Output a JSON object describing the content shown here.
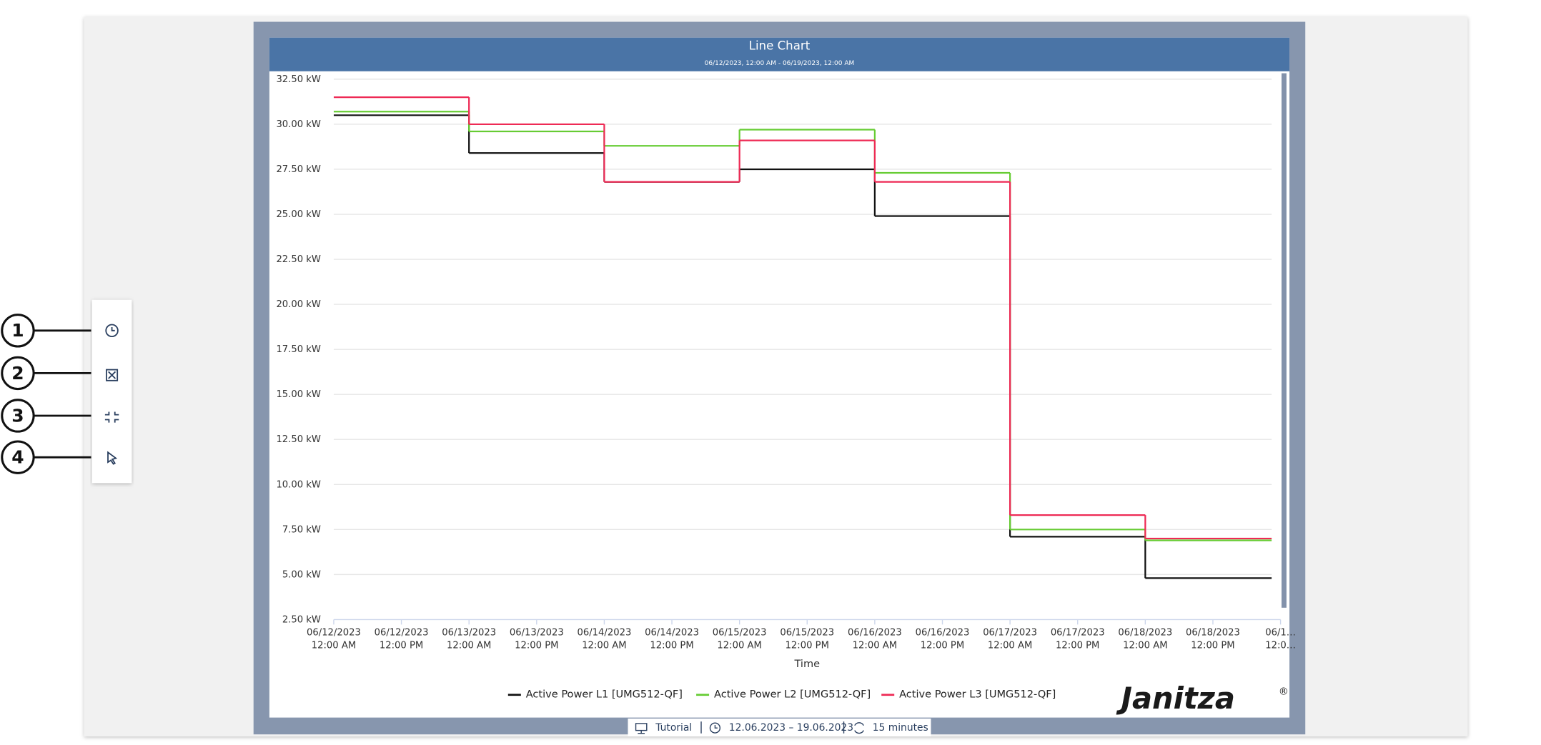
{
  "chart_data": {
    "type": "step-line",
    "title": "Line Chart",
    "subtitle": "06/12/2023, 12:00 AM - 06/19/2023, 12:00 AM",
    "x_label": "Time",
    "x": [
      "06/12/2023 12:00 AM",
      "06/13/2023 12:00 AM",
      "06/14/2023 12:00 AM",
      "06/15/2023 12:00 AM",
      "06/16/2023 12:00 AM",
      "06/17/2023 12:00 AM",
      "06/18/2023 12:00 AM"
    ],
    "series": [
      {
        "name": "Active Power L1 [UMG512-QF]",
        "color": "#111111",
        "values": [
          30.5,
          28.4,
          26.8,
          27.5,
          24.9,
          7.1,
          4.8
        ]
      },
      {
        "name": "Active Power L2 [UMG512-QF]",
        "color": "#66cc33",
        "values": [
          30.7,
          29.6,
          28.8,
          29.7,
          27.3,
          7.5,
          6.9
        ]
      },
      {
        "name": "Active Power L3 [UMG512-QF]",
        "color": "#ee2a55",
        "values": [
          31.5,
          30.0,
          26.8,
          29.1,
          26.8,
          8.3,
          7.0
        ]
      }
    ],
    "xlim": [
      "06/12/2023 12:00 AM",
      "06/19/2023 12:00 AM"
    ],
    "xticks": [
      {
        "value": "06/12/2023 12:00 AM",
        "label": "06/12/2023 12:00 AM"
      },
      {
        "value": "06/12/2023 12:00 PM",
        "label": "06/12/2023 12:00 PM"
      },
      {
        "value": "06/13/2023 12:00 AM",
        "label": "06/13/2023 12:00 AM"
      },
      {
        "value": "06/13/2023 12:00 PM",
        "label": "06/13/2023 12:00 PM"
      },
      {
        "value": "06/14/2023 12:00 AM",
        "label": "06/14/2023 12:00 AM"
      },
      {
        "value": "06/14/2023 12:00 PM",
        "label": "06/14/2023 12:00 PM"
      },
      {
        "value": "06/15/2023 12:00 AM",
        "label": "06/15/2023 12:00 AM"
      },
      {
        "value": "06/15/2023 12:00 PM",
        "label": "06/15/2023 12:00 PM"
      },
      {
        "value": "06/16/2023 12:00 AM",
        "label": "06/16/2023 12:00 AM"
      },
      {
        "value": "06/16/2023 12:00 PM",
        "label": "06/16/2023 12:00 PM"
      },
      {
        "value": "06/17/2023 12:00 AM",
        "label": "06/17/2023 12:00 AM"
      },
      {
        "value": "06/17/2023 12:00 PM",
        "label": "06/17/2023 12:00 PM"
      },
      {
        "value": "06/18/2023 12:00 AM",
        "label": "06/18/2023 12:00 AM"
      },
      {
        "value": "06/18/2023 12:00 PM",
        "label": "06/18/2023 12:00 PM"
      },
      {
        "value": "06/19/2023 12:00 AM",
        "label": "06/1… 12:0…"
      }
    ],
    "ylim": [
      2.5,
      32.5
    ],
    "yticks": [
      {
        "value": 2.5,
        "label": "2.50 kW"
      },
      {
        "value": 5,
        "label": "5.00 kW"
      },
      {
        "value": 7.5,
        "label": "7.50 kW"
      },
      {
        "value": 10,
        "label": "10.00 kW"
      },
      {
        "value": 12.5,
        "label": "12.50 kW"
      },
      {
        "value": 15,
        "label": "15.00 kW"
      },
      {
        "value": 17.5,
        "label": "17.50 kW"
      },
      {
        "value": 20,
        "label": "20.00 kW"
      },
      {
        "value": 22.5,
        "label": "22.50 kW"
      },
      {
        "value": 25,
        "label": "25.00 kW"
      },
      {
        "value": 27.5,
        "label": "27.50 kW"
      },
      {
        "value": 30,
        "label": "30.00 kW"
      },
      {
        "value": 32.5,
        "label": "32.50 kW"
      }
    ],
    "grid": true,
    "legend": "bottom"
  },
  "logo": "Janitza",
  "logo_mark": "®",
  "footer": {
    "dashboard": "Tutorial",
    "range": "12.06.2023 – 19.06.2023",
    "interval": "15 minutes"
  },
  "callouts": [
    "1",
    "2",
    "3",
    "4"
  ]
}
